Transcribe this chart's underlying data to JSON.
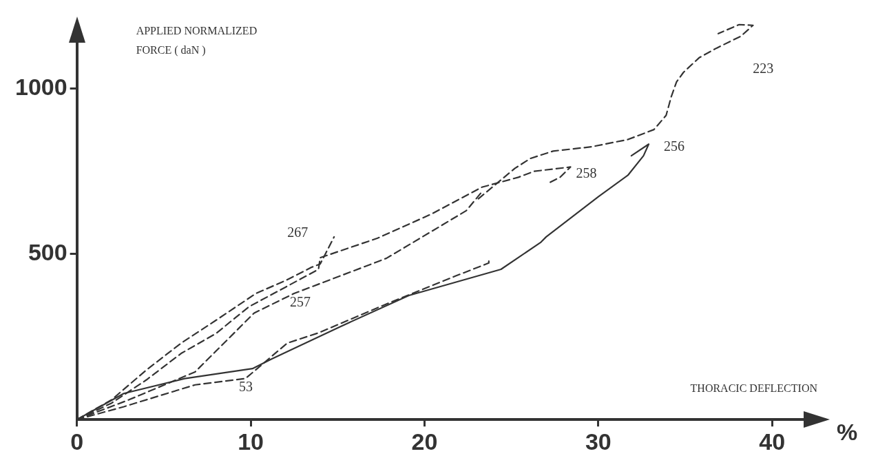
{
  "chart_data": {
    "type": "line",
    "xlabel": "THORACIC DEFLECTION",
    "ylabel": "APPLIED NORMALIZED FORCE ( daN )",
    "annotations": [
      "%"
    ],
    "xlim": [
      0,
      43
    ],
    "ylim": [
      0,
      1200
    ],
    "xticks": [
      0,
      10,
      20,
      30,
      40
    ],
    "yticks": [
      500,
      1000
    ],
    "grid": false,
    "legend": false,
    "marker": "none",
    "series": [
      {
        "name": "223",
        "color": "#333333",
        "line_style": "dashed",
        "x": [
          23.1,
          25.2,
          26.1,
          27.4,
          29.6,
          31.7,
          33.2,
          33.9,
          34.2,
          34.5,
          34.9,
          35.8,
          36.8,
          38.2,
          38.9,
          38.1,
          36.9
        ],
        "values": [
          667,
          759,
          789,
          811,
          824,
          846,
          876,
          919,
          976,
          1020,
          1049,
          1093,
          1122,
          1158,
          1191,
          1193,
          1166
        ]
      },
      {
        "name": "256",
        "color": "#333333",
        "line_style": "solid",
        "x": [
          0,
          2.7,
          6.2,
          10.1,
          11.2,
          15.2,
          19.1,
          24.4,
          26.7,
          27,
          30,
          31.7,
          32.6,
          32.9,
          31.9
        ],
        "values": [
          0,
          79,
          124,
          154,
          183,
          282,
          375,
          454,
          536,
          552,
          673,
          738,
          797,
          832,
          797
        ]
      },
      {
        "name": "258",
        "color": "#333333",
        "line_style": "dashed",
        "x": [
          0,
          2,
          4,
          6,
          8,
          9.9,
          12,
          13.9,
          14,
          17.3,
          20.4,
          23.3,
          25.4,
          26.3,
          28.4,
          27.8,
          27.2
        ],
        "values": [
          0,
          50,
          120,
          200,
          260,
          341,
          400,
          454,
          489,
          548,
          621,
          702,
          732,
          750,
          763,
          732,
          716
        ]
      },
      {
        "name": "267",
        "color": "#333333",
        "line_style": "dashed",
        "x": [
          0,
          2,
          4,
          6,
          8,
          10.3,
          12,
          13.5,
          14,
          14.8
        ],
        "values": [
          0,
          60,
          150,
          231,
          300,
          381,
          420,
          460,
          470,
          552
        ]
      },
      {
        "name": "257",
        "color": "#333333",
        "line_style": "dashed",
        "x": [
          0,
          3,
          6.8,
          10.2,
          12.5,
          17.8,
          22.4,
          23.3
        ],
        "values": [
          0,
          60,
          144,
          322,
          381,
          487,
          631,
          688
        ]
      },
      {
        "name": "53",
        "color": "#333333",
        "line_style": "dashed",
        "x": [
          0,
          2.7,
          6.8,
          9.7,
          10.6,
          12.1,
          13.9,
          17.8,
          21.8,
          23.7,
          23.7
        ],
        "values": [
          0,
          39,
          105,
          124,
          164,
          231,
          262,
          349,
          434,
          473,
          487
        ]
      }
    ]
  }
}
